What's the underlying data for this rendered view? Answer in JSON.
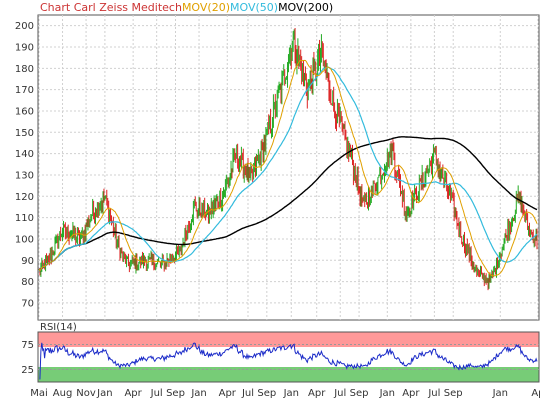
{
  "chart_data": {
    "type": "line",
    "title_parts": [
      {
        "text": "Chart Carl Zeiss Meditech",
        "color": "#cc3333"
      },
      {
        "text": "MOV(20)",
        "color": "#e0a000"
      },
      {
        "text": "MOV(50)",
        "color": "#33bbdd"
      },
      {
        "text": "MOV(200)",
        "color": "#000000"
      }
    ],
    "price_panel": {
      "ylim": [
        62,
        205
      ],
      "yticks": [
        70,
        80,
        90,
        100,
        110,
        120,
        130,
        140,
        150,
        160,
        170,
        180,
        190,
        200
      ],
      "grid": true,
      "moving_averages": [
        {
          "name": "MOV(20)",
          "color": "#e0a000",
          "window": 20
        },
        {
          "name": "MOV(50)",
          "color": "#33bbdd",
          "window": 50
        },
        {
          "name": "MOV(200)",
          "color": "#000000",
          "window": 200
        }
      ],
      "price_anchors": [
        [
          0,
          85
        ],
        [
          10,
          90
        ],
        [
          25,
          104
        ],
        [
          45,
          100
        ],
        [
          55,
          111
        ],
        [
          70,
          119
        ],
        [
          85,
          95
        ],
        [
          95,
          88
        ],
        [
          110,
          90
        ],
        [
          130,
          88
        ],
        [
          150,
          94
        ],
        [
          165,
          115
        ],
        [
          180,
          112
        ],
        [
          195,
          120
        ],
        [
          210,
          140
        ],
        [
          225,
          128
        ],
        [
          240,
          145
        ],
        [
          255,
          168
        ],
        [
          270,
          193
        ],
        [
          285,
          170
        ],
        [
          300,
          186
        ],
        [
          315,
          160
        ],
        [
          330,
          140
        ],
        [
          345,
          115
        ],
        [
          360,
          128
        ],
        [
          375,
          142
        ],
        [
          390,
          112
        ],
        [
          405,
          125
        ],
        [
          420,
          138
        ],
        [
          435,
          122
        ],
        [
          450,
          100
        ],
        [
          465,
          84
        ],
        [
          480,
          80
        ],
        [
          495,
          100
        ],
        [
          510,
          120
        ],
        [
          520,
          104
        ],
        [
          528,
          100
        ]
      ],
      "colors": {
        "up": "#22aa22",
        "down": "#dd2222",
        "ma20": "#e0a000",
        "ma50": "#33bbdd",
        "ma200": "#000000"
      }
    },
    "rsi_panel": {
      "label": "RSI(14)",
      "ylim": [
        0,
        100
      ],
      "yticks": [
        25,
        75
      ],
      "overbought_band": [
        70,
        100
      ],
      "oversold_band": [
        0,
        30
      ],
      "line_color": "#1a2ac8",
      "band_colors": {
        "overbought": "#ff9999",
        "oversold": "#77cc77"
      }
    },
    "x_axis": {
      "labels": [
        "Mai",
        "Aug",
        "Nov",
        "Jan",
        "Apr",
        "Jul",
        "Sep",
        "Jan",
        "Apr",
        "Jul",
        "Sep",
        "Jan",
        "Apr",
        "Jul",
        "Sep",
        "Jan",
        "Apr",
        "Jul",
        "Sep",
        "Jan",
        "Ap"
      ],
      "label_positions": [
        0,
        25,
        50,
        70,
        100,
        125,
        145,
        170,
        200,
        222,
        242,
        268,
        295,
        320,
        340,
        370,
        395,
        420,
        440,
        490,
        530
      ]
    }
  }
}
